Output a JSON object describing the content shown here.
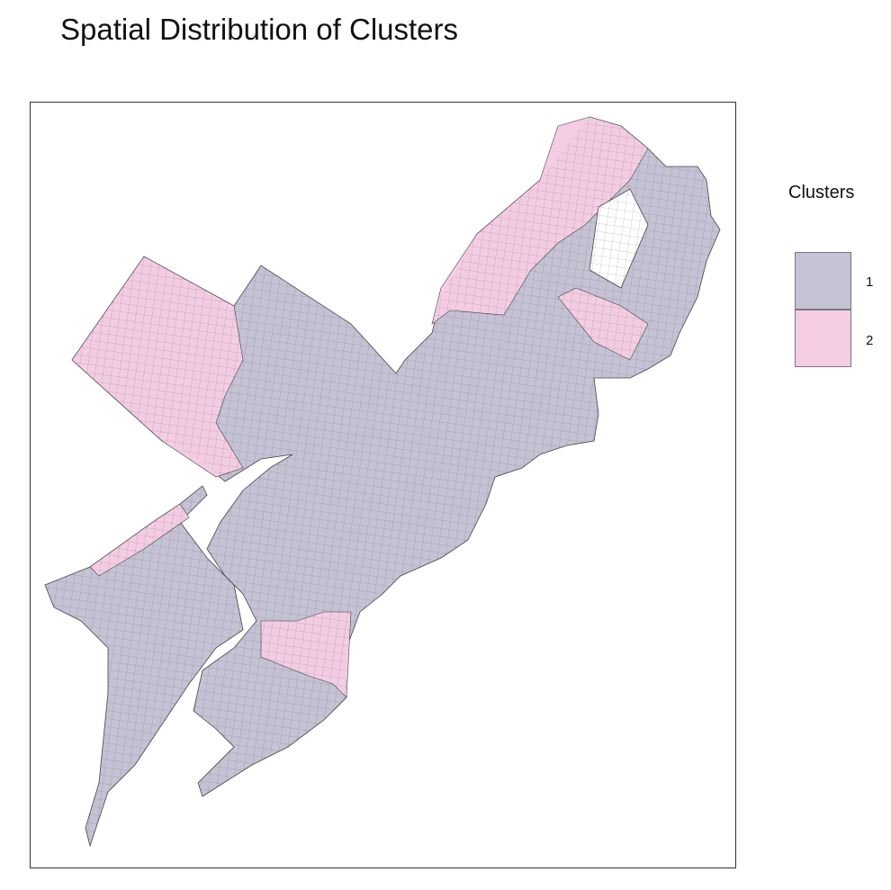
{
  "title": "Spatial Distribution of Clusters",
  "legend": {
    "title": "Clusters",
    "items": [
      {
        "label": "1",
        "color": "#c4c2d4"
      },
      {
        "label": "2",
        "color": "#f4cde4"
      }
    ]
  },
  "colors": {
    "border": "#444444",
    "background": "#ffffff"
  }
}
